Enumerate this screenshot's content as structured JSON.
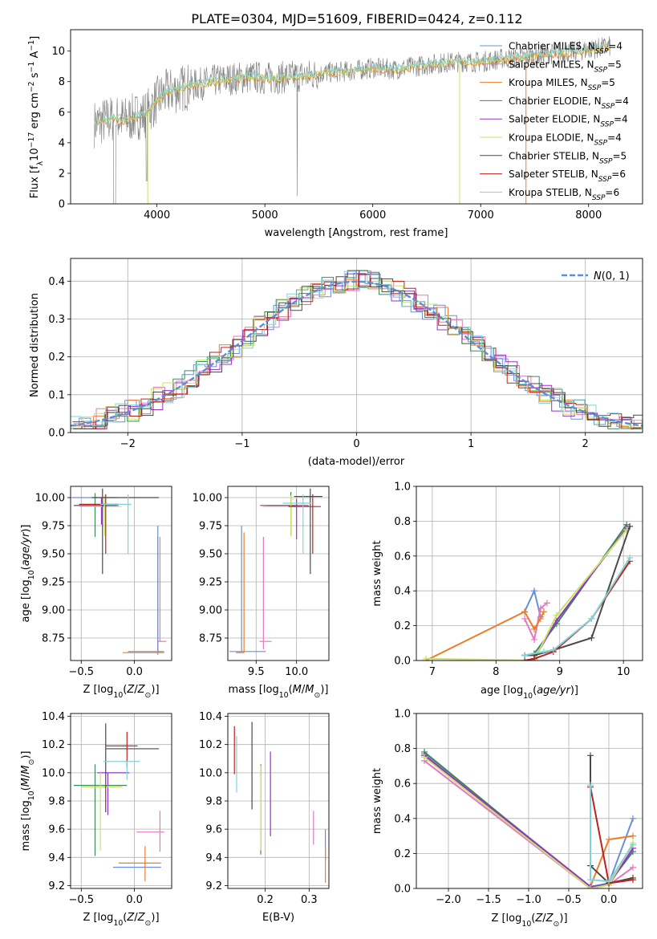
{
  "figure": {
    "title": "PLATE=0304, MJD=51609, FIBERID=0424, z=0.112"
  },
  "series_names": [
    "Chabrier MILES, N_SSP=4",
    "Salpeter MILES, N_SSP=5",
    "Kroupa MILES, N_SSP=5",
    "Chabrier ELODIE, N_SSP=4",
    "Salpeter ELODIE, N_SSP=4",
    "Kroupa ELODIE, N_SSP=4",
    "Chabrier STELIB, N_SSP=5",
    "Salpeter STELIB, N_SSP=6",
    "Kroupa STELIB, N_SSP=6"
  ],
  "colors": {
    "chabrier_miles": "#6a8fd8",
    "salpeter_miles": "#e377c2",
    "kroupa_miles": "#ee7d2b",
    "chabrier_elodie": "#3b8a5a",
    "salpeter_elodie": "#9b30c8",
    "kroupa_elodie": "#c7e26a",
    "chabrier_stelib": "#4a4a4a",
    "salpeter_stelib": "#c0201c",
    "kroupa_stelib": "#7fd3d8",
    "data": "#808080",
    "normal": "#5f8dd3"
  },
  "chart_data": [
    {
      "id": "spectrum",
      "type": "line",
      "xlabel": "wavelength [Angstrom, rest frame]",
      "ylabel": "Flux [f_λ 10^-17 erg cm^-2 s^-1 A^-1]",
      "xlim": [
        3200,
        8500
      ],
      "ylim": [
        0,
        11.4
      ],
      "xticks": [
        4000,
        5000,
        6000,
        7000,
        8000
      ],
      "yticks": [
        0,
        2,
        4,
        6,
        8,
        10
      ],
      "continuum": {
        "x": [
          3400,
          3500,
          3600,
          3700,
          3800,
          3900,
          4000,
          4100,
          4200,
          4300,
          4500,
          4700,
          4900,
          5000,
          5200,
          5400,
          5600,
          5800,
          6000,
          6200,
          6400,
          6600,
          6800,
          7000,
          7200,
          7400,
          7600,
          7800,
          8000,
          8200
        ],
        "y": [
          5.2,
          5.4,
          5.6,
          5.5,
          5.7,
          5.9,
          6.8,
          7.3,
          7.5,
          7.7,
          8.0,
          8.2,
          8.3,
          8.2,
          8.3,
          8.4,
          8.6,
          8.7,
          8.9,
          8.8,
          9.0,
          9.2,
          9.3,
          9.3,
          9.5,
          9.6,
          9.8,
          9.9,
          10.1,
          10.3
        ]
      }
    },
    {
      "id": "residuals",
      "type": "line",
      "xlabel": "(data-model)/error",
      "ylabel": "Normed distribution",
      "xlim": [
        -2.5,
        2.5
      ],
      "ylim": [
        0,
        0.46
      ],
      "xticks": [
        -2,
        -1,
        0,
        1,
        2
      ],
      "yticks": [
        0.0,
        0.1,
        0.2,
        0.3,
        0.4
      ],
      "normal_label": "N(0, 1)"
    },
    {
      "id": "age_vs_Z",
      "type": "scatter",
      "xlabel": "Z [log10(Z/Z⊙)]",
      "ylabel": "age [log10(age/yr)]",
      "xlim": [
        -0.6,
        0.35
      ],
      "ylim": [
        8.55,
        10.1
      ],
      "xticks": [
        -0.5,
        0.0
      ],
      "yticks": [
        8.75,
        9.0,
        9.25,
        9.5,
        9.75,
        10.0
      ],
      "points": [
        {
          "series": 0,
          "x": -0.17,
          "y": 10.0,
          "xerr": [
            0.42,
            0.0
          ],
          "yerr": [
            0.0,
            0.0
          ]
        },
        {
          "series": 1,
          "x": 0.24,
          "y": 8.72,
          "xerr": [
            0.02,
            0.06
          ],
          "yerr": [
            0.0,
            0.93
          ]
        },
        {
          "series": 2,
          "x": 0.22,
          "y": 8.62,
          "xerr": [
            0.33,
            0.06
          ],
          "yerr": [
            0.02,
            1.03
          ]
        },
        {
          "series": 3,
          "x": -0.37,
          "y": 9.93,
          "xerr": [
            0.2,
            0.2
          ],
          "yerr": [
            0.28,
            0.11
          ]
        },
        {
          "series": 4,
          "x": -0.31,
          "y": 9.93,
          "xerr": [
            0.26,
            0.16
          ],
          "yerr": [
            0.17,
            0.07
          ]
        },
        {
          "series": 5,
          "x": -0.28,
          "y": 9.92,
          "xerr": [
            0.24,
            0.16
          ],
          "yerr": [
            0.26,
            0.1
          ]
        },
        {
          "series": 6,
          "x": -0.3,
          "y": 10.0,
          "xerr": [
            0.1,
            0.53
          ],
          "yerr": [
            0.68,
            0.08
          ]
        },
        {
          "series": 7,
          "x": -0.27,
          "y": 9.94,
          "xerr": [
            0.25,
            0.12
          ],
          "yerr": [
            0.44,
            0.09
          ]
        },
        {
          "series": 8,
          "x": -0.06,
          "y": 9.94,
          "xerr": [
            0.26,
            0.03
          ],
          "yerr": [
            0.44,
            0.09
          ]
        },
        {
          "series": 0,
          "x": 0.22,
          "y": 8.63,
          "xerr": [
            0.28,
            0.06
          ],
          "yerr": [
            0.0,
            1.12
          ]
        }
      ]
    },
    {
      "id": "age_vs_mass",
      "type": "scatter",
      "xlabel": "mass [log10(M/M⊙)]",
      "ylabel": "",
      "xlim": [
        9.15,
        10.4
      ],
      "ylim": [
        8.55,
        10.1
      ],
      "xticks": [
        9.5,
        10.0
      ],
      "yticks": [
        8.75,
        9.0,
        9.25,
        9.5,
        9.75,
        10.0
      ],
      "points": [
        {
          "series": 0,
          "x": 9.32,
          "y": 8.63,
          "xerr": [
            0.15,
            0.3
          ],
          "yerr": [
            0.0,
            1.12
          ]
        },
        {
          "series": 1,
          "x": 9.59,
          "y": 8.72,
          "xerr": [
            0.05,
            0.1
          ],
          "yerr": [
            0.07,
            0.93
          ]
        },
        {
          "series": 2,
          "x": 9.35,
          "y": 8.62,
          "xerr": [
            0.1,
            0.0
          ],
          "yerr": [
            0.0,
            1.07
          ]
        },
        {
          "series": 3,
          "x": 9.93,
          "y": 9.93,
          "xerr": [
            0.3,
            0.08
          ],
          "yerr": [
            0.27,
            0.12
          ]
        },
        {
          "series": 4,
          "x": 10.0,
          "y": 9.93,
          "xerr": [
            0.45,
            0.15
          ],
          "yerr": [
            0.3,
            0.06
          ]
        },
        {
          "series": 5,
          "x": 9.93,
          "y": 9.92,
          "xerr": [
            0.35,
            0.1
          ],
          "yerr": [
            0.26,
            0.1
          ]
        },
        {
          "series": 6,
          "x": 10.17,
          "y": 10.01,
          "xerr": [
            0.2,
            0.15
          ],
          "yerr": [
            0.69,
            0.07
          ]
        },
        {
          "series": 7,
          "x": 10.2,
          "y": 9.92,
          "xerr": [
            0.3,
            0.1
          ],
          "yerr": [
            0.42,
            0.11
          ]
        },
        {
          "series": 8,
          "x": 10.08,
          "y": 9.95,
          "xerr": [
            0.25,
            0.1
          ],
          "yerr": [
            0.45,
            0.08
          ]
        }
      ]
    },
    {
      "id": "massweight_vs_age",
      "type": "line",
      "xlabel": "age [log10(age/yr)]",
      "ylabel": "mass weight",
      "xlim": [
        6.75,
        10.3
      ],
      "ylim": [
        0,
        1.0
      ],
      "xticks": [
        7,
        8,
        9,
        10
      ],
      "yticks": [
        0.0,
        0.2,
        0.4,
        0.6,
        0.8,
        1.0
      ],
      "series": [
        {
          "s": 0,
          "x": [
            8.45,
            8.6,
            8.7
          ],
          "y": [
            0.28,
            0.4,
            0.25
          ]
        },
        {
          "s": 1,
          "x": [
            8.45,
            8.6,
            8.7,
            8.8
          ],
          "y": [
            0.24,
            0.12,
            0.3,
            0.33
          ]
        },
        {
          "s": 2,
          "x": [
            6.9,
            8.45,
            8.6,
            8.7,
            8.75
          ],
          "y": [
            0.0,
            0.28,
            0.18,
            0.24,
            0.28
          ]
        },
        {
          "s": 3,
          "x": [
            8.45,
            8.6,
            8.95,
            10.05
          ],
          "y": [
            0.03,
            0.04,
            0.21,
            0.78
          ]
        },
        {
          "s": 4,
          "x": [
            8.45,
            8.6,
            8.95,
            10.05
          ],
          "y": [
            0.0,
            0.01,
            0.23,
            0.76
          ]
        },
        {
          "s": 5,
          "x": [
            6.9,
            8.6,
            8.95,
            10.05
          ],
          "y": [
            0.01,
            0.0,
            0.26,
            0.75
          ]
        },
        {
          "s": 6,
          "x": [
            8.45,
            8.6,
            8.9,
            9.5,
            10.1
          ],
          "y": [
            0.03,
            0.03,
            0.06,
            0.13,
            0.77
          ]
        },
        {
          "s": 7,
          "x": [
            8.45,
            8.6,
            8.9,
            9.5,
            10.1
          ],
          "y": [
            0.0,
            0.01,
            0.05,
            0.24,
            0.57
          ]
        },
        {
          "s": 8,
          "x": [
            8.45,
            8.75,
            8.9,
            9.5,
            10.1
          ],
          "y": [
            0.03,
            0.05,
            0.06,
            0.24,
            0.59
          ]
        }
      ]
    },
    {
      "id": "mass_vs_Z",
      "type": "scatter",
      "xlabel": "Z [log10(Z/Z⊙)]",
      "ylabel": "mass [log10(M/M⊙)]",
      "xlim": [
        -0.6,
        0.35
      ],
      "ylim": [
        9.18,
        10.42
      ],
      "xticks": [
        -0.5,
        0.0
      ],
      "yticks": [
        9.2,
        9.4,
        9.6,
        9.8,
        10.0,
        10.2,
        10.4
      ],
      "points": [
        {
          "series": 0,
          "x": 0.05,
          "y": 9.33,
          "xerr": [
            0.25,
            0.2
          ],
          "yerr": [
            0.0,
            0.0
          ]
        },
        {
          "series": 1,
          "x": 0.24,
          "y": 9.58,
          "xerr": [
            0.22,
            0.04
          ],
          "yerr": [
            0.14,
            0.15
          ]
        },
        {
          "series": 2,
          "x": 0.1,
          "y": 9.36,
          "xerr": [
            0.25,
            0.15
          ],
          "yerr": [
            0.13,
            0.12
          ]
        },
        {
          "series": 3,
          "x": -0.37,
          "y": 9.91,
          "xerr": [
            0.2,
            0.3
          ],
          "yerr": [
            0.5,
            0.15
          ]
        },
        {
          "series": 4,
          "x": -0.25,
          "y": 10.0,
          "xerr": [
            0.1,
            0.2
          ],
          "yerr": [
            0.3,
            0.0
          ]
        },
        {
          "series": 5,
          "x": -0.32,
          "y": 9.9,
          "xerr": [
            0.18,
            0.2
          ],
          "yerr": [
            0.45,
            0.1
          ]
        },
        {
          "series": 6,
          "x": -0.27,
          "y": 10.17,
          "xerr": [
            0.0,
            0.5
          ],
          "yerr": [
            0.45,
            0.18
          ]
        },
        {
          "series": 7,
          "x": -0.07,
          "y": 10.19,
          "xerr": [
            0.2,
            0.1
          ],
          "yerr": [
            0.15,
            0.1
          ]
        },
        {
          "series": 8,
          "x": -0.07,
          "y": 10.08,
          "xerr": [
            0.22,
            0.12
          ],
          "yerr": [
            0.13,
            0.0
          ]
        }
      ]
    },
    {
      "id": "mass_vs_ebv",
      "type": "scatter",
      "xlabel": "E(B-V)",
      "ylabel": "",
      "xlim": [
        0.115,
        0.345
      ],
      "ylim": [
        9.18,
        10.42
      ],
      "xticks": [
        0.1,
        0.2,
        0.3
      ],
      "yticks": [
        9.2,
        9.4,
        9.6,
        9.8,
        10.0,
        10.2,
        10.4
      ],
      "points": [
        {
          "series": 0,
          "x": 0.337,
          "y": 9.48,
          "xerr": [
            0.0,
            0.0
          ],
          "yerr": [
            0.1,
            0.12
          ]
        },
        {
          "series": 1,
          "x": 0.31,
          "y": 9.61,
          "xerr": [
            0.0,
            0.0
          ],
          "yerr": [
            0.12,
            0.12
          ]
        },
        {
          "series": 2,
          "x": 0.337,
          "y": 9.36,
          "xerr": [
            0.0,
            0.0
          ],
          "yerr": [
            0.14,
            0.12
          ]
        },
        {
          "series": 3,
          "x": 0.19,
          "y": 9.74,
          "xerr": [
            0.0,
            0.0
          ],
          "yerr": [
            0.32,
            0.32
          ]
        },
        {
          "series": 4,
          "x": 0.212,
          "y": 9.85,
          "xerr": [
            0.0,
            0.0
          ],
          "yerr": [
            0.3,
            0.3
          ]
        },
        {
          "series": 5,
          "x": 0.19,
          "y": 9.75,
          "xerr": [
            0.0,
            0.0
          ],
          "yerr": [
            0.3,
            0.3
          ]
        },
        {
          "series": 6,
          "x": 0.17,
          "y": 10.05,
          "xerr": [
            0.0,
            0.0
          ],
          "yerr": [
            0.31,
            0.31
          ]
        },
        {
          "series": 7,
          "x": 0.13,
          "y": 10.16,
          "xerr": [
            0.0,
            0.0
          ],
          "yerr": [
            0.17,
            0.17
          ]
        },
        {
          "series": 8,
          "x": 0.135,
          "y": 10.06,
          "xerr": [
            0.0,
            0.0
          ],
          "yerr": [
            0.2,
            0.2
          ]
        }
      ]
    },
    {
      "id": "massweight_vs_Z",
      "type": "line",
      "xlabel": "Z [log10(Z/Z⊙)]",
      "ylabel": "mass weight",
      "xlim": [
        -2.4,
        0.42
      ],
      "ylim": [
        0,
        1.0
      ],
      "xticks": [
        -2.0,
        -1.5,
        -1.0,
        -0.5,
        0.0
      ],
      "yticks": [
        0.0,
        0.2,
        0.4,
        0.6,
        0.8,
        1.0
      ],
      "series": [
        {
          "s": 0,
          "x": [
            -2.3,
            -0.23,
            0.0,
            0.3
          ],
          "y": [
            0.77,
            0.01,
            0.03,
            0.4
          ]
        },
        {
          "s": 1,
          "x": [
            -2.3,
            -0.23,
            0.0,
            0.3
          ],
          "y": [
            0.73,
            0.0,
            0.02,
            0.12
          ]
        },
        {
          "s": 2,
          "x": [
            -2.3,
            -0.23,
            0.0,
            0.3
          ],
          "y": [
            0.76,
            0.01,
            0.28,
            0.3
          ]
        },
        {
          "s": 3,
          "x": [
            -2.3,
            -0.23,
            0.0,
            0.3
          ],
          "y": [
            0.78,
            0.0,
            0.03,
            0.21
          ]
        },
        {
          "s": 4,
          "x": [
            -2.3,
            -0.23,
            0.0,
            0.3
          ],
          "y": [
            0.76,
            0.01,
            0.02,
            0.23
          ]
        },
        {
          "s": 5,
          "x": [
            -2.3,
            -0.23,
            0.0,
            0.3
          ],
          "y": [
            0.75,
            0.0,
            0.02,
            0.26
          ]
        },
        {
          "s": 6,
          "x": [
            -0.23,
            -0.23,
            0.0,
            0.3
          ],
          "y": [
            0.76,
            0.13,
            0.03,
            0.06
          ]
        },
        {
          "s": 7,
          "x": [
            -0.23,
            0.0,
            0.3
          ],
          "y": [
            0.58,
            0.03,
            0.05
          ]
        },
        {
          "s": 8,
          "x": [
            -0.23,
            -0.23,
            0.0,
            0.3
          ],
          "y": [
            0.59,
            0.05,
            0.04,
            0.25
          ]
        }
      ]
    }
  ]
}
